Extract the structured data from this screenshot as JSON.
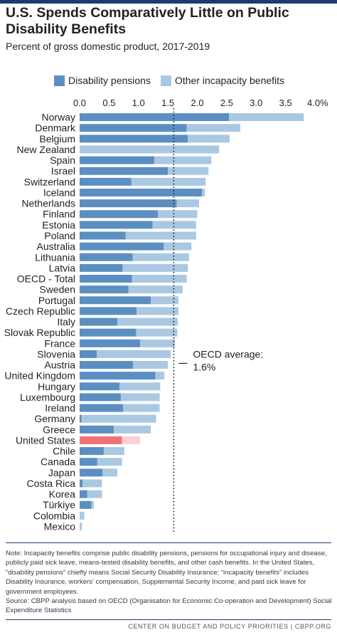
{
  "header": {
    "title": "U.S. Spends Comparatively Little on Public Disability Benefits",
    "subtitle": "Percent of gross domestic product, 2017-2019"
  },
  "colors": {
    "disability_pensions": "#5b8fc2",
    "other_benefits": "#aac8e2",
    "us_disability_pensions": "#f0737a",
    "us_other_benefits": "#fbd1d4",
    "accent": "#1c3d6b"
  },
  "annotation": {
    "label": "OECD average:",
    "value_text": "1.6%",
    "value": 1.6
  },
  "footer": {
    "note": "Note: Incapacity benefits comprise public disability pensions, pensions for occupational injury and disease, publicly paid sick leave, means-tested disability benefits, and other cash benefits. In the United States, “disability pensions” chiefly means Social Security Disability Insurance; “incapacity benefits” includes Disability Insurance, workers’ compensation, Supplemental Security Income, and paid sick leave for government employees.",
    "source": "Source: CBPP analysis based on OECD (Organisation for Economic Co-operation and Development) Social Expenditure Statistics",
    "credit": "CENTER ON BUDGET AND POLICY PRIORITIES | CBPP.ORG"
  },
  "chart_data": {
    "type": "bar",
    "orientation": "horizontal",
    "stacked": true,
    "categories": [
      "Norway",
      "Denmark",
      "Belgium",
      "New Zealand",
      "Spain",
      "Israel",
      "Switzerland",
      "Iceland",
      "Netherlands",
      "Finland",
      "Estonia",
      "Poland",
      "Australia",
      "Lithuania",
      "Latvia",
      "OECD - Total",
      "Sweden",
      "Portugal",
      "Czech Republic",
      "Italy",
      "Slovak Republic",
      "France",
      "Slovenia",
      "Austria",
      "United Kingdom",
      "Hungary",
      "Luxembourg",
      "Ireland",
      "Germany",
      "Greece",
      "United States",
      "Chile",
      "Canada",
      "Japan",
      "Costa Rica",
      "Korea",
      "Türkiye",
      "Colombia",
      "Mexico"
    ],
    "series": [
      {
        "name": "Disability pensions",
        "values": [
          2.54,
          1.82,
          1.84,
          0.0,
          1.27,
          1.5,
          0.88,
          2.08,
          1.65,
          1.33,
          1.24,
          0.78,
          1.43,
          0.9,
          0.73,
          0.89,
          0.83,
          1.21,
          0.97,
          0.64,
          0.96,
          1.03,
          0.29,
          0.91,
          1.29,
          0.68,
          0.7,
          0.74,
          0.03,
          0.58,
          0.72,
          0.41,
          0.3,
          0.39,
          0.05,
          0.13,
          0.2,
          0.0,
          0.0
        ]
      },
      {
        "name": "Other incapacity benefits",
        "values": [
          1.27,
          0.91,
          0.71,
          2.37,
          0.97,
          0.69,
          1.26,
          0.05,
          0.38,
          0.67,
          0.74,
          1.2,
          0.47,
          0.96,
          1.11,
          0.93,
          0.92,
          0.47,
          0.71,
          1.03,
          0.7,
          0.59,
          1.26,
          0.59,
          0.15,
          0.69,
          0.66,
          0.62,
          1.27,
          0.63,
          0.31,
          0.35,
          0.42,
          0.25,
          0.33,
          0.25,
          0.04,
          0.08,
          0.04
        ]
      }
    ],
    "highlight_category": "United States",
    "reference_line": 1.6,
    "xlim": [
      0,
      4.0
    ],
    "xticks": [
      "0.0",
      "0.5",
      "1.0",
      "1.5",
      "2.0",
      "2.5",
      "3.0",
      "3.5",
      "4.0%"
    ],
    "xtick_values": [
      0,
      0.5,
      1.0,
      1.5,
      2.0,
      2.5,
      3.0,
      3.5,
      4.0
    ],
    "legend_position": "top"
  }
}
